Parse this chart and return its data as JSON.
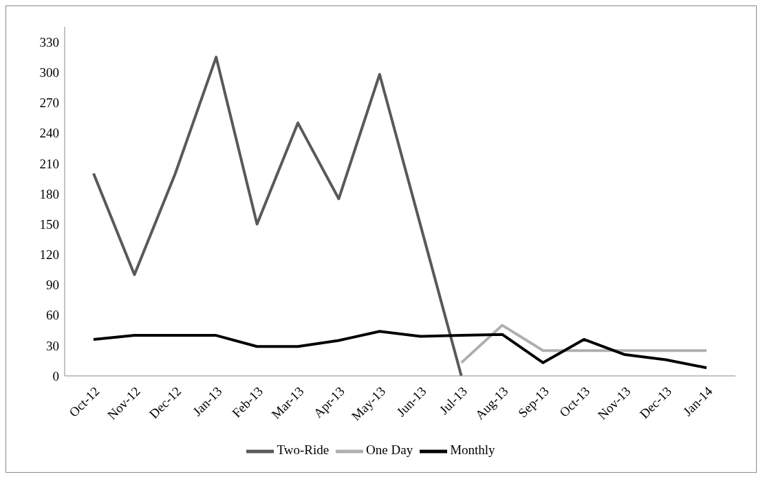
{
  "chart_data": {
    "type": "line",
    "categories": [
      "Oct-12",
      "Nov-12",
      "Dec-12",
      "Jan-13",
      "Feb-13",
      "Mar-13",
      "Apr-13",
      "May-13",
      "Jun-13",
      "Jul-13",
      "Aug-13",
      "Sep-13",
      "Oct-13",
      "Nov-13",
      "Dec-13",
      "Jan-14"
    ],
    "series": [
      {
        "name": "Two-Ride",
        "color": "#595959",
        "values": [
          200,
          100,
          200,
          315,
          150,
          250,
          175,
          298,
          149,
          0,
          null,
          null,
          null,
          null,
          null,
          null
        ]
      },
      {
        "name": "One Day",
        "color": "#afafaf",
        "values": [
          null,
          null,
          null,
          null,
          null,
          null,
          null,
          null,
          null,
          13,
          50,
          25,
          25,
          25,
          25,
          25
        ]
      },
      {
        "name": "Monthly",
        "color": "#000000",
        "values": [
          36,
          40,
          40,
          40,
          29,
          29,
          35,
          44,
          39,
          40,
          41,
          13,
          36,
          21,
          16,
          8
        ]
      }
    ],
    "ylim": [
      0,
      345
    ],
    "yticks": [
      0,
      30,
      60,
      90,
      120,
      150,
      180,
      210,
      240,
      270,
      300,
      330
    ],
    "grid": false,
    "legend": "bottom",
    "marker": "none",
    "line_style": "solid"
  }
}
